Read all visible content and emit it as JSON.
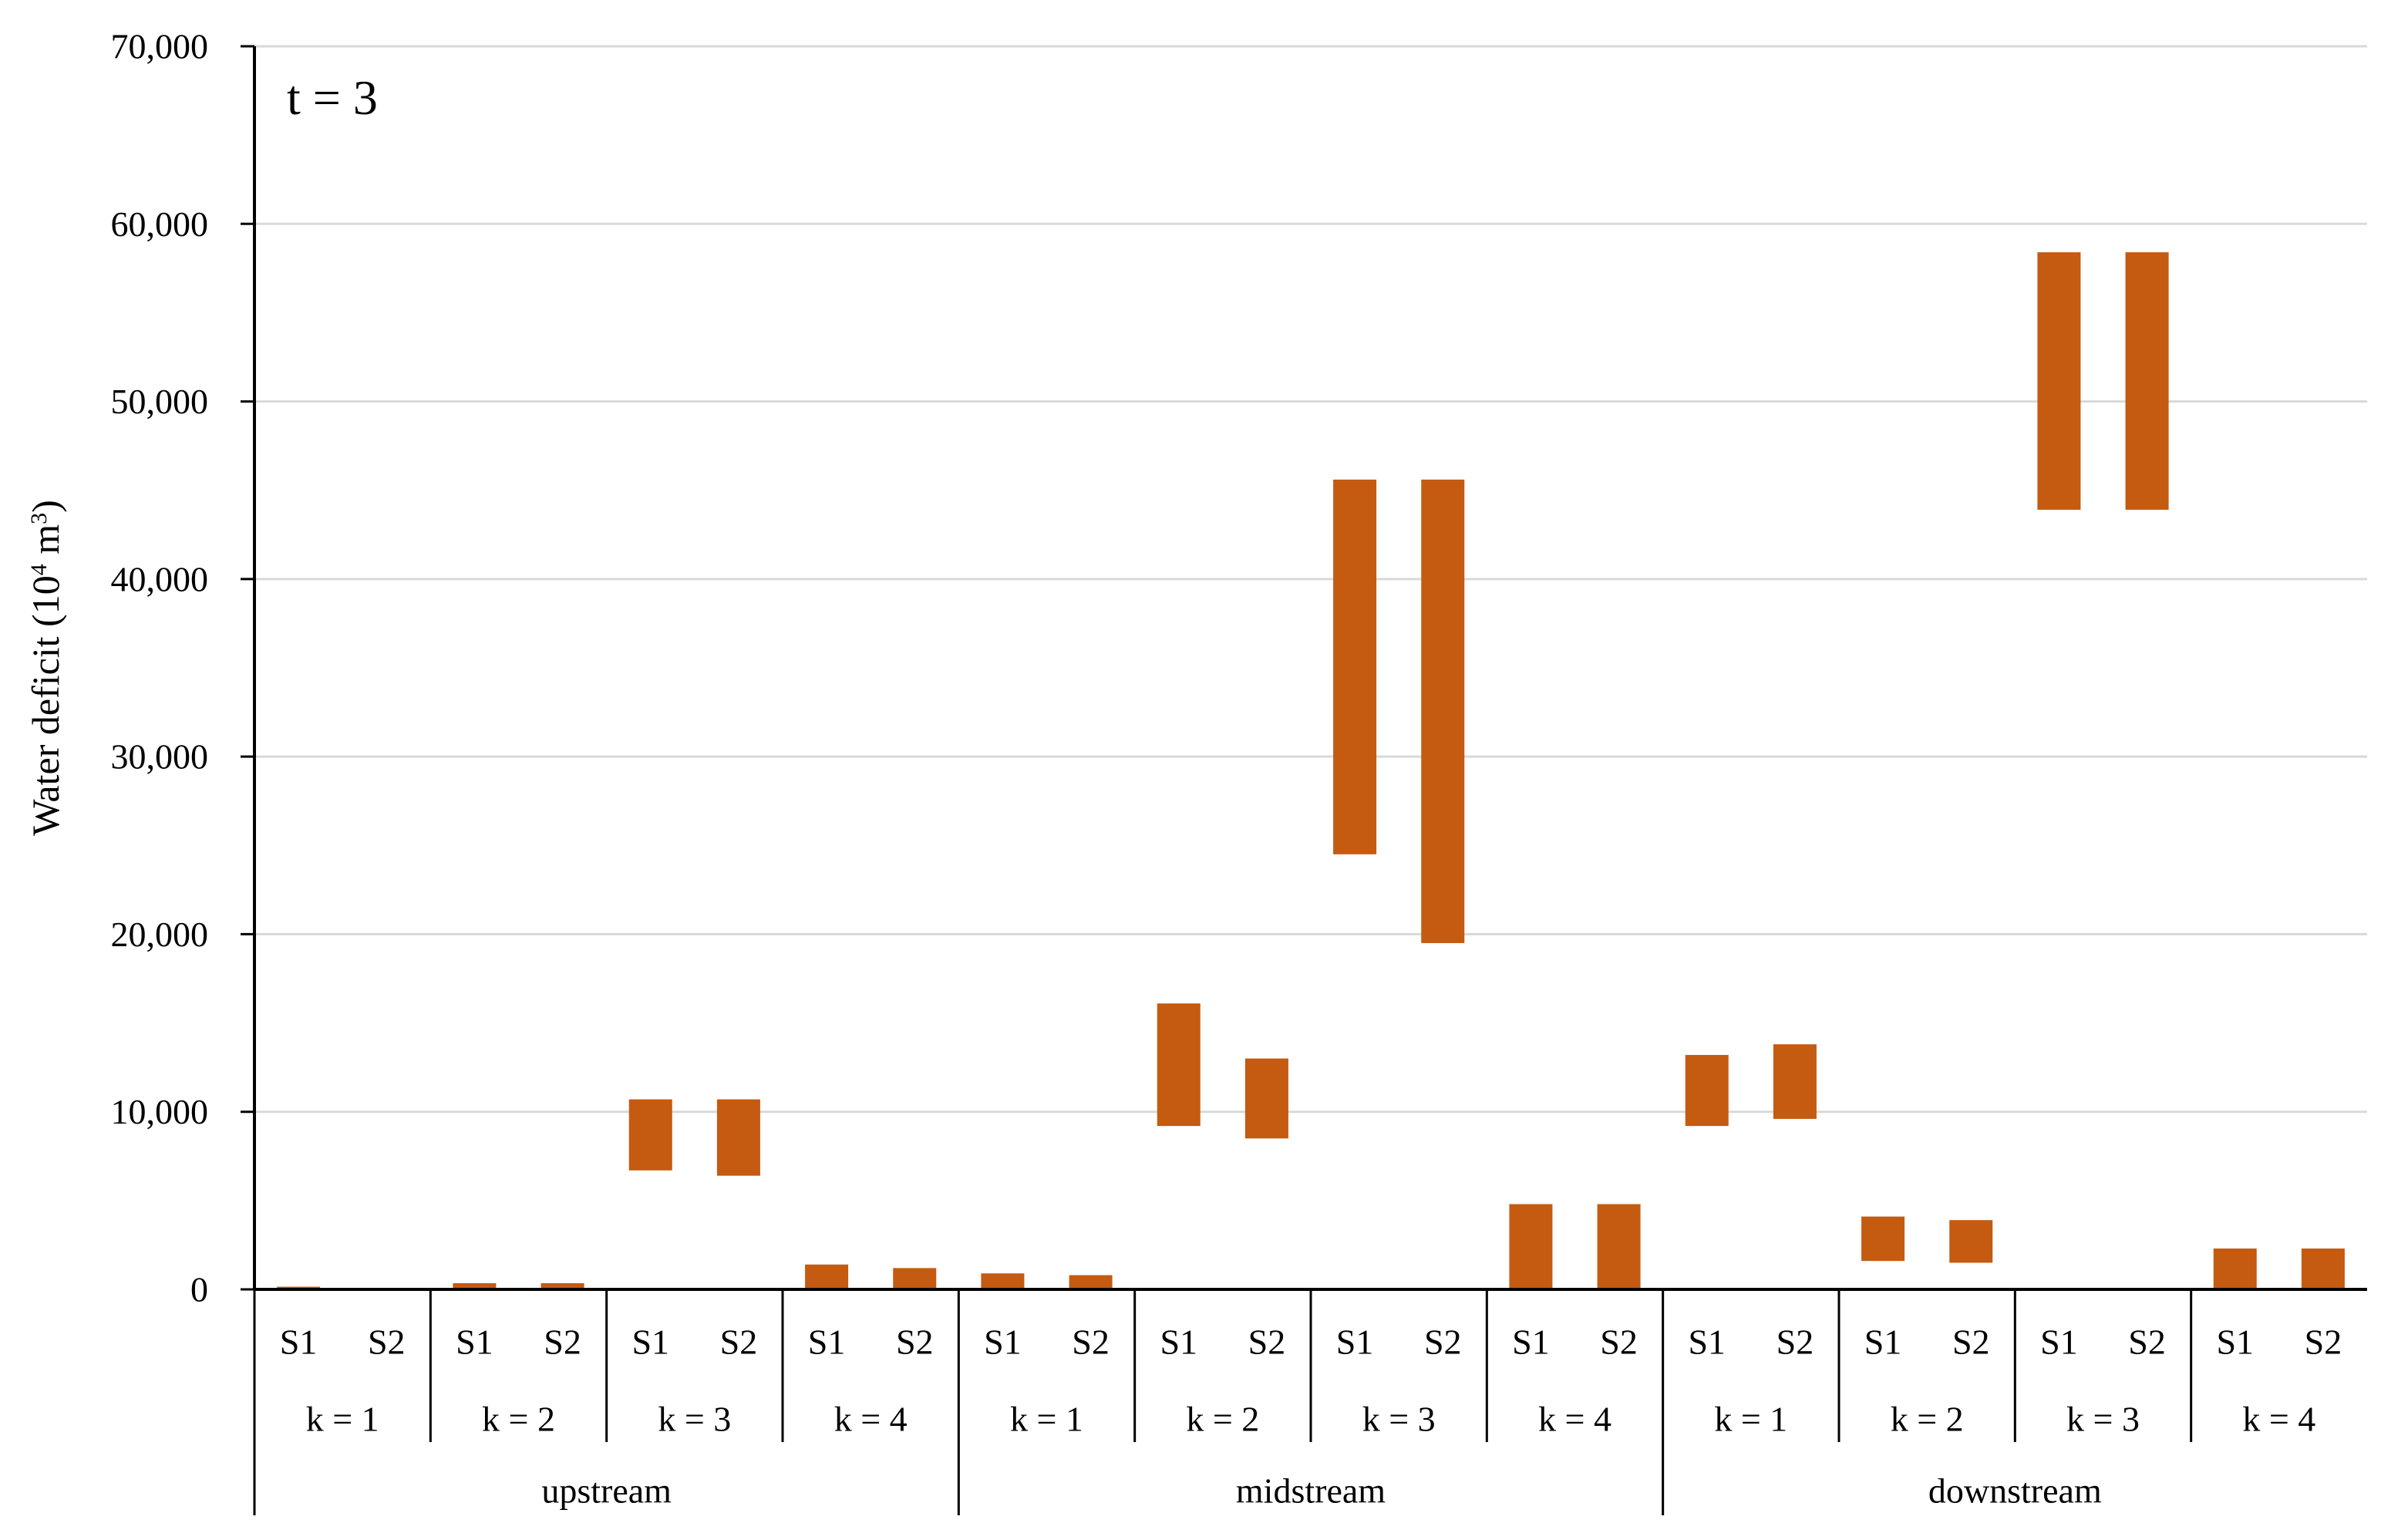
{
  "chart_data": {
    "type": "floating-bar",
    "title": "",
    "annotation": "t = 3",
    "ylabel": {
      "main": "Water deficit (10",
      "sup1": "4",
      "mid": " m",
      "sup2": "3",
      "end": ")"
    },
    "xlabel": "",
    "ylim": [
      0,
      70000
    ],
    "yticks": [
      0,
      10000,
      20000,
      30000,
      40000,
      50000,
      60000,
      70000
    ],
    "ytick_labels": [
      "0",
      "10,000",
      "20,000",
      "30,000",
      "40,000",
      "50,000",
      "60,000",
      "70,000"
    ],
    "grid": true,
    "bar_color": "#C55A11",
    "regions": [
      {
        "name": "upstream",
        "clusters": [
          {
            "k": "k = 1",
            "bars": [
              {
                "scenario": "S1",
                "low": 0,
                "high": 150
              },
              {
                "scenario": "S2",
                "low": 0,
                "high": 0
              }
            ]
          },
          {
            "k": "k = 2",
            "bars": [
              {
                "scenario": "S1",
                "low": 0,
                "high": 350
              },
              {
                "scenario": "S2",
                "low": 0,
                "high": 350
              }
            ]
          },
          {
            "k": "k = 3",
            "bars": [
              {
                "scenario": "S1",
                "low": 6700,
                "high": 10700
              },
              {
                "scenario": "S2",
                "low": 6400,
                "high": 10700
              }
            ]
          },
          {
            "k": "k = 4",
            "bars": [
              {
                "scenario": "S1",
                "low": 0,
                "high": 1400
              },
              {
                "scenario": "S2",
                "low": 0,
                "high": 1200
              }
            ]
          }
        ]
      },
      {
        "name": "midstream",
        "clusters": [
          {
            "k": "k = 1",
            "bars": [
              {
                "scenario": "S1",
                "low": 0,
                "high": 900
              },
              {
                "scenario": "S2",
                "low": 0,
                "high": 800
              }
            ]
          },
          {
            "k": "k = 2",
            "bars": [
              {
                "scenario": "S1",
                "low": 9200,
                "high": 16100
              },
              {
                "scenario": "S2",
                "low": 8500,
                "high": 13000
              }
            ]
          },
          {
            "k": "k = 3",
            "bars": [
              {
                "scenario": "S1",
                "low": 24500,
                "high": 45600
              },
              {
                "scenario": "S2",
                "low": 19500,
                "high": 45600
              }
            ]
          },
          {
            "k": "k = 4",
            "bars": [
              {
                "scenario": "S1",
                "low": 0,
                "high": 4800
              },
              {
                "scenario": "S2",
                "low": 0,
                "high": 4800
              }
            ]
          }
        ]
      },
      {
        "name": "downstream",
        "clusters": [
          {
            "k": "k = 1",
            "bars": [
              {
                "scenario": "S1",
                "low": 9200,
                "high": 13200
              },
              {
                "scenario": "S2",
                "low": 9600,
                "high": 13800
              }
            ]
          },
          {
            "k": "k = 2",
            "bars": [
              {
                "scenario": "S1",
                "low": 1600,
                "high": 4100
              },
              {
                "scenario": "S2",
                "low": 1500,
                "high": 3900
              }
            ]
          },
          {
            "k": "k = 3",
            "bars": [
              {
                "scenario": "S1",
                "low": 43900,
                "high": 58400
              },
              {
                "scenario": "S2",
                "low": 43900,
                "high": 58400
              }
            ]
          },
          {
            "k": "k = 4",
            "bars": [
              {
                "scenario": "S1",
                "low": 0,
                "high": 2300
              },
              {
                "scenario": "S2",
                "low": 0,
                "high": 2300
              }
            ]
          }
        ]
      }
    ]
  }
}
